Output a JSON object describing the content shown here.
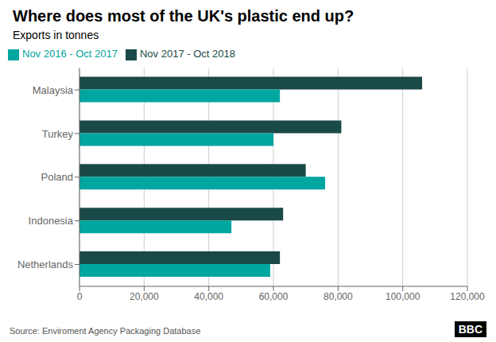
{
  "chart_data": {
    "type": "bar",
    "orientation": "horizontal",
    "title": "Where does most of the UK's plastic end up?",
    "subtitle": "Exports in tonnes",
    "categories": [
      "Malaysia",
      "Turkey",
      "Poland",
      "Indonesia",
      "Netherlands"
    ],
    "series": [
      {
        "name": "Nov 2017 - Oct 2018",
        "color": "#1a4a47",
        "values": [
          106000,
          81000,
          70000,
          63000,
          62000
        ]
      },
      {
        "name": "Nov 2016 - Oct 2017",
        "color": "#00a6a0",
        "values": [
          62000,
          60000,
          76000,
          47000,
          59000
        ]
      }
    ],
    "xlim": [
      0,
      120000
    ],
    "xticks": [
      0,
      {
        "value": 20000,
        "label": "20,000"
      },
      {
        "value": 40000,
        "label": "40,000"
      },
      {
        "value": 60000,
        "label": "60,000"
      },
      {
        "value": 80000,
        "label": "80,000"
      },
      {
        "value": 100000,
        "label": "100,000"
      },
      {
        "value": 120000,
        "label": "120,000"
      }
    ],
    "grid": true,
    "legend": "upper left",
    "annotations": [
      "Source: Enviroment Agency Packaging Database",
      "BBC"
    ]
  }
}
